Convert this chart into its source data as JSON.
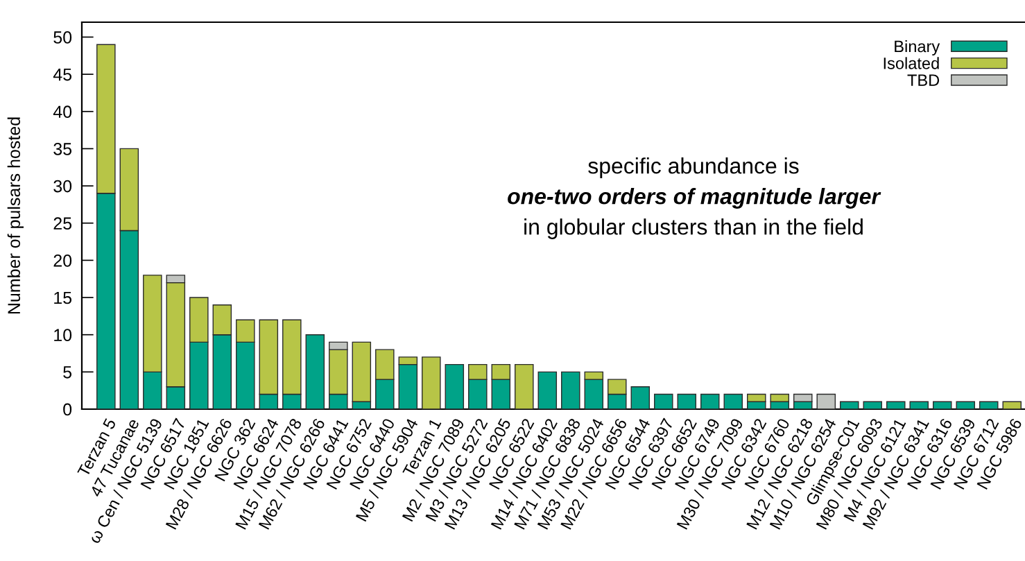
{
  "chart_data": {
    "type": "bar",
    "stacked": true,
    "ylabel": "Number of pulsars hosted",
    "categories": [
      "Terzan 5",
      "47 Tucanae",
      "ω Cen / NGC 5139",
      "NGC 6517",
      "NGC 1851",
      "M28 / NGC 6626",
      "NGC 362",
      "NGC 6624",
      "M15 / NGC 7078",
      "M62 / NGC 6266",
      "NGC 6441",
      "NGC 6752",
      "NGC 6440",
      "M5 / NGC 5904",
      "Terzan 1",
      "M2 / NGC 7089",
      "M3 / NGC 5272",
      "M13 / NGC 6205",
      "NGC 6522",
      "M14 / NGC 6402",
      "M71 / NGC 6838",
      "M53 / NGC 5024",
      "M22 / NGC 6656",
      "NGC 6544",
      "NGC 6397",
      "NGC 6652",
      "NGC 6749",
      "M30 / NGC 7099",
      "NGC 6342",
      "NGC 6760",
      "M12 / NGC 6218",
      "M10 / NGC 6254",
      "Glimpse-C01",
      "M80 / NGC 6093",
      "M4 / NGC 6121",
      "M92 / NGC 6341",
      "NGC 6316",
      "NGC 6539",
      "NGC 6712",
      "NGC 5986"
    ],
    "series": [
      {
        "name": "Binary",
        "color": "#00a388",
        "values": [
          29,
          24,
          5,
          3,
          9,
          10,
          9,
          2,
          2,
          10,
          2,
          1,
          4,
          6,
          0,
          6,
          4,
          4,
          0,
          5,
          5,
          4,
          2,
          3,
          2,
          2,
          2,
          2,
          1,
          1,
          1,
          0,
          1,
          1,
          1,
          1,
          1,
          1,
          1,
          0
        ]
      },
      {
        "name": "Isolated",
        "color": "#b7c547",
        "values": [
          20,
          11,
          13,
          14,
          6,
          4,
          3,
          10,
          10,
          0,
          6,
          8,
          4,
          1,
          7,
          0,
          2,
          2,
          6,
          0,
          0,
          1,
          2,
          0,
          0,
          0,
          0,
          0,
          1,
          1,
          0,
          0,
          0,
          0,
          0,
          0,
          0,
          0,
          0,
          1
        ]
      },
      {
        "name": "TBD",
        "color": "#c1c4c0",
        "values": [
          0,
          0,
          0,
          1,
          0,
          0,
          0,
          0,
          0,
          0,
          1,
          0,
          0,
          0,
          0,
          0,
          0,
          0,
          0,
          0,
          0,
          0,
          0,
          0,
          0,
          0,
          0,
          0,
          0,
          0,
          1,
          2,
          0,
          0,
          0,
          0,
          0,
          0,
          0,
          0
        ]
      }
    ],
    "ylim": [
      0,
      52
    ],
    "yticks": [
      0,
      5,
      10,
      15,
      20,
      25,
      30,
      35,
      40,
      45,
      50
    ],
    "legend": "top right",
    "annotations": [
      "specific abundance is",
      "one-two orders of magnitude larger",
      "in globular clusters than in the field"
    ]
  }
}
